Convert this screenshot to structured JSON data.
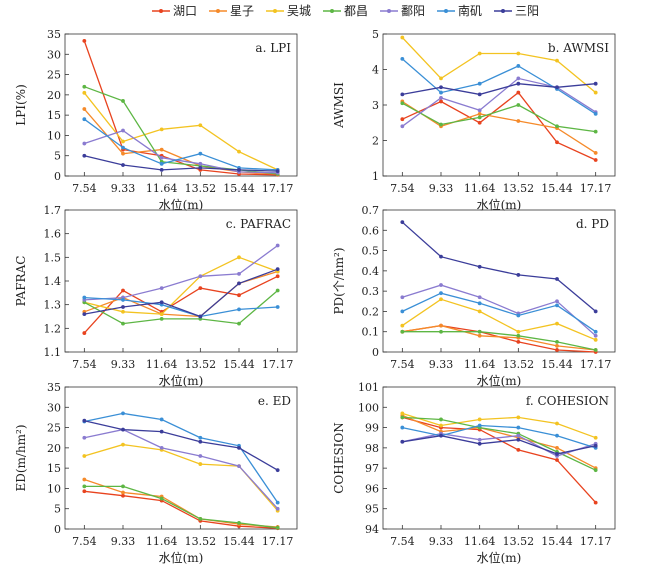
{
  "legend": [
    {
      "name": "湖口",
      "color": "#e8431f"
    },
    {
      "name": "星子",
      "color": "#f58a2a"
    },
    {
      "name": "吴城",
      "color": "#f3c321"
    },
    {
      "name": "都昌",
      "color": "#5db644"
    },
    {
      "name": "鄱阳",
      "color": "#8a7bd0"
    },
    {
      "name": "南矶",
      "color": "#3a8fd6"
    },
    {
      "name": "三阳",
      "color": "#3b3d9a"
    }
  ],
  "chart_data": [
    {
      "type": "line",
      "title": "a. LPI",
      "xlabel": "水位(m)",
      "ylabel": "LPI(%)",
      "categories": [
        "7.54",
        "9.33",
        "11.64",
        "13.52",
        "15.44",
        "17.17"
      ],
      "ylim": [
        0,
        35
      ],
      "yticks": [
        "0",
        "5",
        "10",
        "15",
        "20",
        "25",
        "30",
        "35"
      ],
      "series": [
        {
          "name": "湖口",
          "values": [
            33.3,
            6.5,
            5.0,
            1.5,
            0.5,
            0.3
          ]
        },
        {
          "name": "星子",
          "values": [
            16.5,
            5.5,
            6.5,
            2.5,
            1.0,
            0.5
          ]
        },
        {
          "name": "吴城",
          "values": [
            20.5,
            8.5,
            11.5,
            12.5,
            6.0,
            1.5
          ]
        },
        {
          "name": "都昌",
          "values": [
            22.0,
            18.5,
            3.5,
            2.5,
            1.5,
            0.5
          ]
        },
        {
          "name": "鄱阳",
          "values": [
            8.0,
            11.2,
            4.5,
            3.0,
            1.0,
            0.8
          ]
        },
        {
          "name": "南矶",
          "values": [
            14.0,
            7.0,
            3.0,
            5.5,
            2.0,
            1.5
          ]
        },
        {
          "name": "三阳",
          "values": [
            5.0,
            2.7,
            1.5,
            2.0,
            1.5,
            1.2
          ]
        }
      ]
    },
    {
      "type": "line",
      "title": "b. AWMSI",
      "xlabel": "水位(m)",
      "ylabel": "AWMSI",
      "categories": [
        "7.54",
        "9.33",
        "11.64",
        "13.52",
        "15.44",
        "17.17"
      ],
      "ylim": [
        1,
        5
      ],
      "yticks": [
        "1",
        "2",
        "3",
        "4",
        "5"
      ],
      "series": [
        {
          "name": "湖口",
          "values": [
            2.6,
            3.1,
            2.5,
            3.35,
            1.95,
            1.45
          ]
        },
        {
          "name": "星子",
          "values": [
            3.1,
            2.4,
            2.75,
            2.55,
            2.35,
            1.65
          ]
        },
        {
          "name": "吴城",
          "values": [
            4.9,
            3.75,
            4.45,
            4.45,
            4.25,
            3.35
          ]
        },
        {
          "name": "都昌",
          "values": [
            3.05,
            2.45,
            2.65,
            3.0,
            2.4,
            2.25
          ]
        },
        {
          "name": "鄱阳",
          "values": [
            2.4,
            3.2,
            2.85,
            3.75,
            3.5,
            2.8
          ]
        },
        {
          "name": "南矶",
          "values": [
            4.3,
            3.35,
            3.6,
            4.1,
            3.45,
            2.75
          ]
        },
        {
          "name": "三阳",
          "values": [
            3.3,
            3.5,
            3.3,
            3.6,
            3.5,
            3.6
          ]
        }
      ]
    },
    {
      "type": "line",
      "title": "c. PAFRAC",
      "xlabel": "水位(m)",
      "ylabel": "PAFRAC",
      "categories": [
        "7.54",
        "9.33",
        "11.64",
        "13.52",
        "15.44",
        "17.17"
      ],
      "ylim": [
        1.1,
        1.7
      ],
      "yticks": [
        "1.1",
        "1.2",
        "1.3",
        "1.4",
        "1.5",
        "1.6",
        "1.7"
      ],
      "series": [
        {
          "name": "湖口",
          "values": [
            1.18,
            1.36,
            1.27,
            1.37,
            1.34,
            1.42
          ]
        },
        {
          "name": "星子",
          "values": [
            1.27,
            1.33,
            1.26,
            1.25,
            1.39,
            1.44
          ]
        },
        {
          "name": "吴城",
          "values": [
            1.31,
            1.27,
            1.26,
            1.42,
            1.5,
            1.44
          ]
        },
        {
          "name": "都昌",
          "values": [
            1.31,
            1.22,
            1.24,
            1.24,
            1.22,
            1.36
          ]
        },
        {
          "name": "鄱阳",
          "values": [
            1.32,
            1.33,
            1.37,
            1.42,
            1.43,
            1.55
          ]
        },
        {
          "name": "南矶",
          "values": [
            1.33,
            1.32,
            1.3,
            1.25,
            1.28,
            1.29
          ]
        },
        {
          "name": "三阳",
          "values": [
            1.26,
            1.29,
            1.31,
            1.25,
            1.39,
            1.45
          ]
        }
      ]
    },
    {
      "type": "line",
      "title": "d. PD",
      "xlabel": "水位(m)",
      "ylabel": "PD(个/hm²)",
      "categories": [
        "7.54",
        "9.33",
        "11.64",
        "13.52",
        "15.44",
        "17.17"
      ],
      "ylim": [
        0,
        0.7
      ],
      "yticks": [
        "0",
        "0.1",
        "0.2",
        "0.3",
        "0.4",
        "0.5",
        "0.6",
        "0.7"
      ],
      "series": [
        {
          "name": "湖口",
          "values": [
            0.1,
            0.13,
            0.1,
            0.05,
            0.01,
            0.0
          ]
        },
        {
          "name": "星子",
          "values": [
            0.1,
            0.13,
            0.08,
            0.07,
            0.03,
            0.01
          ]
        },
        {
          "name": "吴城",
          "values": [
            0.13,
            0.26,
            0.2,
            0.1,
            0.14,
            0.06
          ]
        },
        {
          "name": "都昌",
          "values": [
            0.1,
            0.1,
            0.1,
            0.08,
            0.05,
            0.01
          ]
        },
        {
          "name": "鄱阳",
          "values": [
            0.27,
            0.33,
            0.27,
            0.19,
            0.25,
            0.08
          ]
        },
        {
          "name": "南矶",
          "values": [
            0.2,
            0.29,
            0.24,
            0.18,
            0.23,
            0.1
          ]
        },
        {
          "name": "三阳",
          "values": [
            0.64,
            0.47,
            0.42,
            0.38,
            0.36,
            0.2
          ]
        }
      ]
    },
    {
      "type": "line",
      "title": "e. ED",
      "xlabel": "水位(m)",
      "ylabel": "ED(m/hm²)",
      "categories": [
        "7.54",
        "9.33",
        "11.64",
        "13.52",
        "15.44",
        "17.17"
      ],
      "ylim": [
        0,
        35
      ],
      "yticks": [
        "0",
        "5",
        "10",
        "15",
        "20",
        "25",
        "30",
        "35"
      ],
      "series": [
        {
          "name": "湖口",
          "values": [
            9.3,
            8.2,
            7.0,
            2.0,
            0.7,
            0.2
          ]
        },
        {
          "name": "星子",
          "values": [
            12.2,
            9.0,
            8.0,
            2.5,
            1.2,
            0.5
          ]
        },
        {
          "name": "吴城",
          "values": [
            18.0,
            20.8,
            19.5,
            16.0,
            15.5,
            4.5
          ]
        },
        {
          "name": "都昌",
          "values": [
            10.5,
            10.5,
            7.5,
            2.5,
            1.5,
            0.3
          ]
        },
        {
          "name": "鄱阳",
          "values": [
            22.5,
            24.5,
            20.0,
            18.0,
            15.5,
            5.0
          ]
        },
        {
          "name": "南矶",
          "values": [
            26.5,
            28.5,
            27.0,
            22.5,
            20.5,
            6.5
          ]
        },
        {
          "name": "三阳",
          "values": [
            26.7,
            24.5,
            24.0,
            21.5,
            20.0,
            14.5
          ]
        }
      ]
    },
    {
      "type": "line",
      "title": "f. COHESION",
      "xlabel": "水位(m)",
      "ylabel": "COHESION",
      "categories": [
        "7.54",
        "9.33",
        "11.64",
        "13.52",
        "15.44",
        "17.17"
      ],
      "ylim": [
        94,
        101
      ],
      "yticks": [
        "94",
        "95",
        "96",
        "97",
        "98",
        "99",
        "100",
        "101"
      ],
      "series": [
        {
          "name": "湖口",
          "values": [
            99.5,
            99.0,
            98.9,
            97.9,
            97.4,
            95.3
          ]
        },
        {
          "name": "星子",
          "values": [
            99.6,
            98.8,
            99.0,
            98.5,
            98.0,
            97.0
          ]
        },
        {
          "name": "吴城",
          "values": [
            99.7,
            99.1,
            99.4,
            99.5,
            99.2,
            98.5
          ]
        },
        {
          "name": "都昌",
          "values": [
            99.5,
            99.4,
            99.0,
            98.7,
            97.8,
            96.9
          ]
        },
        {
          "name": "鄱阳",
          "values": [
            98.3,
            98.7,
            98.4,
            98.6,
            97.6,
            98.2
          ]
        },
        {
          "name": "南矶",
          "values": [
            99.0,
            98.6,
            99.1,
            99.0,
            98.6,
            98.0
          ]
        },
        {
          "name": "三阳",
          "values": [
            98.3,
            98.6,
            98.2,
            98.4,
            97.7,
            98.1
          ]
        }
      ]
    }
  ]
}
